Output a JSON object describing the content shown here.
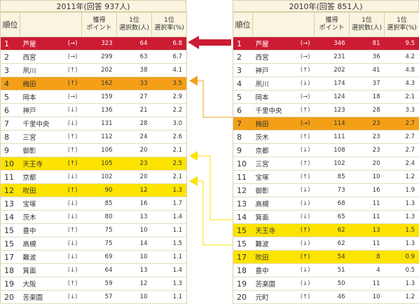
{
  "left": {
    "title": "2011年(回答 937人)",
    "headers": {
      "rank": "順位",
      "points": "獲得\nポイント",
      "count": "1位\n選択数(人)",
      "rate": "1位\n選択率(%)"
    },
    "rows": [
      {
        "rank": "1",
        "name": "芦屋",
        "arrow": "(→)",
        "points": "323",
        "count": "64",
        "rate": "6.8",
        "hl": "red"
      },
      {
        "rank": "2",
        "name": "西宮",
        "arrow": "(→)",
        "points": "299",
        "count": "63",
        "rate": "6.7",
        "hl": ""
      },
      {
        "rank": "3",
        "name": "夙川",
        "arrow": "(↑)",
        "points": "202",
        "count": "38",
        "rate": "4.1",
        "hl": ""
      },
      {
        "rank": "4",
        "name": "梅田",
        "arrow": "(↑)",
        "points": "162",
        "count": "33",
        "rate": "3.5",
        "hl": "orange"
      },
      {
        "rank": "5",
        "name": "岡本",
        "arrow": "(→)",
        "points": "159",
        "count": "27",
        "rate": "2.9",
        "hl": ""
      },
      {
        "rank": "6",
        "name": "神戸",
        "arrow": "(↓)",
        "points": "136",
        "count": "21",
        "rate": "2.2",
        "hl": ""
      },
      {
        "rank": "7",
        "name": "千里中央",
        "arrow": "(↓)",
        "points": "131",
        "count": "28",
        "rate": "3.0",
        "hl": ""
      },
      {
        "rank": "8",
        "name": "三宮",
        "arrow": "(↑)",
        "points": "112",
        "count": "24",
        "rate": "2.6",
        "hl": ""
      },
      {
        "rank": "9",
        "name": "御影",
        "arrow": "(↑)",
        "points": "106",
        "count": "20",
        "rate": "2.1",
        "hl": ""
      },
      {
        "rank": "10",
        "name": "天王寺",
        "arrow": "(↑)",
        "points": "105",
        "count": "23",
        "rate": "2.5",
        "hl": "yellow"
      },
      {
        "rank": "11",
        "name": "京都",
        "arrow": "(↓)",
        "points": "102",
        "count": "20",
        "rate": "2.1",
        "hl": ""
      },
      {
        "rank": "12",
        "name": "吹田",
        "arrow": "(↑)",
        "points": "90",
        "count": "12",
        "rate": "1.3",
        "hl": "yellow"
      },
      {
        "rank": "13",
        "name": "宝塚",
        "arrow": "(↓)",
        "points": "85",
        "count": "16",
        "rate": "1.7",
        "hl": ""
      },
      {
        "rank": "14",
        "name": "茨木",
        "arrow": "(↓)",
        "points": "80",
        "count": "13",
        "rate": "1.4",
        "hl": ""
      },
      {
        "rank": "15",
        "name": "豊中",
        "arrow": "(↑)",
        "points": "75",
        "count": "10",
        "rate": "1.1",
        "hl": ""
      },
      {
        "rank": "15",
        "name": "高槻",
        "arrow": "(↓)",
        "points": "75",
        "count": "14",
        "rate": "1.5",
        "hl": ""
      },
      {
        "rank": "17",
        "name": "難波",
        "arrow": "(↓)",
        "points": "69",
        "count": "10",
        "rate": "1.1",
        "hl": ""
      },
      {
        "rank": "18",
        "name": "箕面",
        "arrow": "(↓)",
        "points": "64",
        "count": "13",
        "rate": "1.4",
        "hl": ""
      },
      {
        "rank": "19",
        "name": "大阪",
        "arrow": "(↑)",
        "points": "59",
        "count": "12",
        "rate": "1.3",
        "hl": ""
      },
      {
        "rank": "20",
        "name": "苦楽園",
        "arrow": "(↓)",
        "points": "57",
        "count": "10",
        "rate": "1.1",
        "hl": ""
      }
    ]
  },
  "right": {
    "title": "2010年(回答 851人)",
    "headers": {
      "rank": "順位",
      "points": "獲得\nポイント",
      "count": "1位\n選択数(人)",
      "rate": "1位\n選択率(%)"
    },
    "rows": [
      {
        "rank": "1",
        "name": "芦屋",
        "arrow": "(→)",
        "points": "346",
        "count": "81",
        "rate": "9.5",
        "hl": "red"
      },
      {
        "rank": "2",
        "name": "西宮",
        "arrow": "(→)",
        "points": "231",
        "count": "36",
        "rate": "4.2",
        "hl": ""
      },
      {
        "rank": "3",
        "name": "神戸",
        "arrow": "(↑)",
        "points": "202",
        "count": "41",
        "rate": "4.8",
        "hl": ""
      },
      {
        "rank": "4",
        "name": "夙川",
        "arrow": "(↓)",
        "points": "174",
        "count": "37",
        "rate": "4.3",
        "hl": ""
      },
      {
        "rank": "5",
        "name": "岡本",
        "arrow": "(→)",
        "points": "124",
        "count": "18",
        "rate": "2.1",
        "hl": ""
      },
      {
        "rank": "6",
        "name": "千里中央",
        "arrow": "(↑)",
        "points": "123",
        "count": "28",
        "rate": "3.3",
        "hl": ""
      },
      {
        "rank": "7",
        "name": "梅田",
        "arrow": "(→)",
        "points": "114",
        "count": "23",
        "rate": "2.7",
        "hl": "orange"
      },
      {
        "rank": "8",
        "name": "茨木",
        "arrow": "(↑)",
        "points": "111",
        "count": "23",
        "rate": "2.7",
        "hl": ""
      },
      {
        "rank": "9",
        "name": "京都",
        "arrow": "(↓)",
        "points": "108",
        "count": "23",
        "rate": "2.7",
        "hl": ""
      },
      {
        "rank": "10",
        "name": "三宮",
        "arrow": "(↑)",
        "points": "102",
        "count": "20",
        "rate": "2.4",
        "hl": ""
      },
      {
        "rank": "11",
        "name": "宝塚",
        "arrow": "(↑)",
        "points": "85",
        "count": "10",
        "rate": "1.2",
        "hl": ""
      },
      {
        "rank": "12",
        "name": "御影",
        "arrow": "(↓)",
        "points": "73",
        "count": "16",
        "rate": "1.9",
        "hl": ""
      },
      {
        "rank": "13",
        "name": "高槻",
        "arrow": "(↓)",
        "points": "68",
        "count": "11",
        "rate": "1.3",
        "hl": ""
      },
      {
        "rank": "14",
        "name": "箕面",
        "arrow": "(↓)",
        "points": "65",
        "count": "11",
        "rate": "1.3",
        "hl": ""
      },
      {
        "rank": "15",
        "name": "天王寺",
        "arrow": "(↑)",
        "points": "62",
        "count": "13",
        "rate": "1.5",
        "hl": "yellow"
      },
      {
        "rank": "15",
        "name": "難波",
        "arrow": "(↓)",
        "points": "62",
        "count": "11",
        "rate": "1.3",
        "hl": ""
      },
      {
        "rank": "17",
        "name": "吹田",
        "arrow": "(↑)",
        "points": "54",
        "count": "8",
        "rate": "0.9",
        "hl": "yellow"
      },
      {
        "rank": "18",
        "name": "豊中",
        "arrow": "(↓)",
        "points": "51",
        "count": "4",
        "rate": "0.5",
        "hl": ""
      },
      {
        "rank": "19",
        "name": "苦楽園",
        "arrow": "(↓)",
        "points": "50",
        "count": "11",
        "rate": "1.3",
        "hl": ""
      },
      {
        "rank": "20",
        "name": "元町",
        "arrow": "(↑)",
        "points": "46",
        "count": "10",
        "rate": "1.2",
        "hl": ""
      }
    ]
  },
  "colors": {
    "red": "#cc1c34",
    "orange": "#f3a018",
    "yellow": "#fce300",
    "header_bg": "#faf4e0"
  }
}
